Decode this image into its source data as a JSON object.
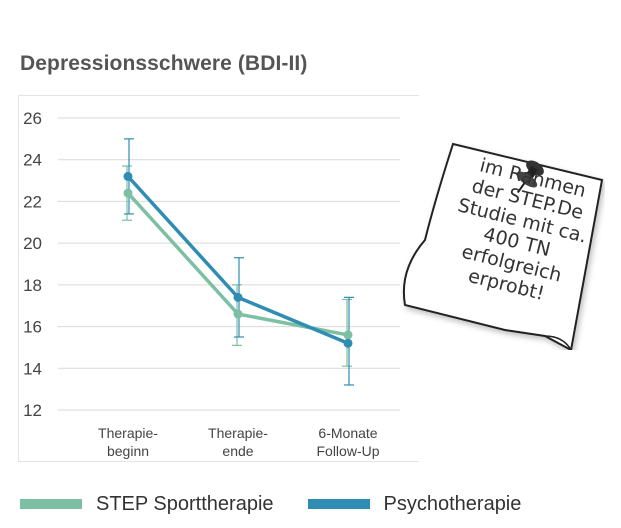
{
  "colors": {
    "sport": "#7dbfa2",
    "psycho": "#2f8db3",
    "grid": "#d9d9d9",
    "axis_text": "#444444"
  },
  "note": {
    "icon": "pushpin-icon",
    "lines": [
      "im Rahmen",
      "der STEP.De",
      "Studie mit ca.",
      "400 TN",
      "erfolgreich",
      "erprobt!"
    ]
  },
  "chart_data": {
    "type": "line",
    "title": "Depressionsschwere (BDI-II)",
    "categories": [
      [
        "Therapie-",
        "beginn"
      ],
      [
        "Therapie-",
        "ende"
      ],
      [
        "6-Monate",
        "Follow-Up"
      ]
    ],
    "ylim": [
      12,
      26
    ],
    "yticks": [
      12,
      14,
      16,
      18,
      20,
      22,
      24,
      26
    ],
    "grid": true,
    "legend_position": "bottom",
    "series": [
      {
        "name": "STEP Sporttherapie",
        "values": [
          22.4,
          16.6,
          15.6
        ],
        "err_low": [
          21.1,
          15.1,
          14.1
        ],
        "err_high": [
          23.7,
          18.0,
          17.3
        ]
      },
      {
        "name": "Psychotherapie",
        "values": [
          23.2,
          17.4,
          15.2
        ],
        "err_low": [
          21.4,
          15.5,
          13.2
        ],
        "err_high": [
          25.0,
          19.3,
          17.4
        ]
      }
    ]
  }
}
